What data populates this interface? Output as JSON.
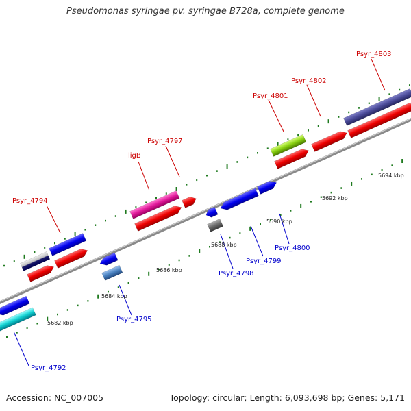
{
  "title": "Pseudomonas syringae pv. syringae B728a, complete genome",
  "footer": {
    "accession": "Accession: NC_007005",
    "summary": "Topology: circular; Length: 6,093,698 bp; Genes: 5,171"
  },
  "colors": {
    "backbone": "#8a8a8a",
    "tick": "#1f7a1f",
    "forward_label": "#cc0000",
    "reverse_label": "#0000cc"
  },
  "kbp_labels": [
    "5682 kbp",
    "5684 kbp",
    "5686 kbp",
    "5688 kbp",
    "5690 kbp",
    "5692 kbp",
    "5694 kbp"
  ],
  "genes": [
    {
      "name": "Psyr_4792",
      "strand": "reverse"
    },
    {
      "name": "Psyr_4794",
      "strand": "forward"
    },
    {
      "name": "Psyr_4795",
      "strand": "reverse"
    },
    {
      "name": "ligB",
      "strand": "forward"
    },
    {
      "name": "Psyr_4797",
      "strand": "forward"
    },
    {
      "name": "Psyr_4798",
      "strand": "reverse"
    },
    {
      "name": "Psyr_4799",
      "strand": "reverse"
    },
    {
      "name": "Psyr_4800",
      "strand": "reverse"
    },
    {
      "name": "Psyr_4801",
      "strand": "forward"
    },
    {
      "name": "Psyr_4802",
      "strand": "forward"
    },
    {
      "name": "Psyr_4803",
      "strand": "forward"
    }
  ]
}
